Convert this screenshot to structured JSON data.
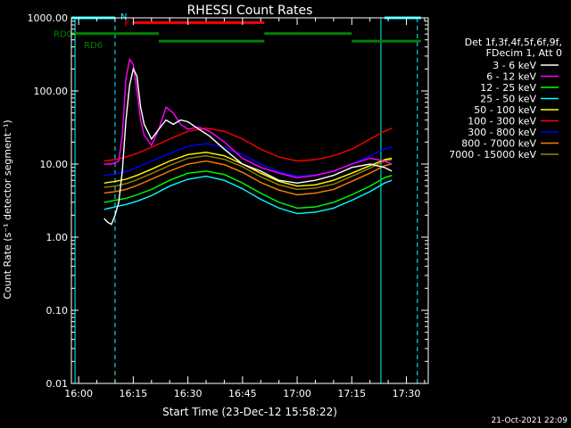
{
  "date_stamp": "21-Oct-2021 22:09",
  "chart_data": {
    "type": "line",
    "title": "RHESSI Count Rates",
    "xlabel": "Start Time (23-Dec-12 15:58:22)",
    "ylabel": "Count Rate (s⁻¹ detector segment⁻¹)",
    "yscale": "log",
    "xlim": [
      "15:58",
      "17:36"
    ],
    "ylim": [
      0.01,
      1000
    ],
    "x_ticks": [
      "16:00",
      "16:15",
      "16:30",
      "16:45",
      "17:00",
      "17:15",
      "17:30"
    ],
    "y_ticks": [
      "0.01",
      "0.10",
      "1.00",
      "10.00",
      "100.00",
      "1000.00"
    ],
    "grid": false,
    "legend_position": "right",
    "legend_header": [
      "Det 1f,3f,4f,5f,6f,9f,",
      "FDecim 1, Att 0"
    ],
    "x_unit": "minutes",
    "series": [
      {
        "name": "3 - 6 keV",
        "color": "#ffffff",
        "x": [
          "16:07",
          "16:08",
          "16:09",
          "16:10",
          "16:11",
          "16:12",
          "16:13",
          "16:14",
          "16:15",
          "16:16",
          "16:17",
          "16:18",
          "16:20",
          "16:22",
          "16:24",
          "16:26",
          "16:28",
          "16:30",
          "16:33",
          "16:36",
          "16:40",
          "16:45",
          "16:50",
          "16:55",
          "17:00",
          "17:05",
          "17:10",
          "17:15",
          "17:20",
          "17:24",
          "17:26"
        ],
        "y": [
          1.8,
          1.6,
          1.5,
          2,
          3,
          8,
          40,
          120,
          200,
          160,
          60,
          35,
          22,
          30,
          40,
          35,
          40,
          38,
          30,
          24,
          16,
          10,
          8,
          6,
          5.5,
          6,
          7,
          9,
          10,
          9,
          8
        ]
      },
      {
        "name": "6 - 12 keV",
        "color": "#ff00ff",
        "x": [
          "16:07",
          "16:09",
          "16:10",
          "16:11",
          "16:12",
          "16:13",
          "16:14",
          "16:15",
          "16:16",
          "16:17",
          "16:18",
          "16:20",
          "16:22",
          "16:24",
          "16:26",
          "16:28",
          "16:30",
          "16:33",
          "16:36",
          "16:40",
          "16:45",
          "16:50",
          "16:55",
          "17:00",
          "17:05",
          "17:10",
          "17:15",
          "17:20",
          "17:24",
          "17:26"
        ],
        "y": [
          10,
          10,
          10.5,
          11,
          25,
          150,
          270,
          230,
          100,
          40,
          25,
          18,
          30,
          60,
          50,
          35,
          30,
          32,
          28,
          20,
          12,
          9,
          7.5,
          6.5,
          7,
          8,
          10,
          12,
          11,
          10
        ]
      },
      {
        "name": "12 - 25 keV",
        "color": "#00ff00",
        "x": [
          "16:07",
          "16:10",
          "16:13",
          "16:16",
          "16:20",
          "16:25",
          "16:30",
          "16:35",
          "16:40",
          "16:45",
          "16:50",
          "16:55",
          "17:00",
          "17:05",
          "17:10",
          "17:15",
          "17:20",
          "17:24",
          "17:26"
        ],
        "y": [
          3,
          3.2,
          3.4,
          3.8,
          4.5,
          6,
          7.5,
          8,
          7.2,
          5.5,
          4,
          3,
          2.5,
          2.6,
          3,
          3.8,
          5,
          6.5,
          7
        ]
      },
      {
        "name": "25 - 50 keV",
        "color": "#00ffff",
        "x": [
          "16:07",
          "16:10",
          "16:13",
          "16:16",
          "16:20",
          "16:25",
          "16:30",
          "16:35",
          "16:40",
          "16:45",
          "16:50",
          "16:55",
          "17:00",
          "17:05",
          "17:10",
          "17:15",
          "17:20",
          "17:24",
          "17:26"
        ],
        "y": [
          2.4,
          2.6,
          2.8,
          3.1,
          3.7,
          5,
          6.2,
          6.8,
          6,
          4.6,
          3.3,
          2.5,
          2.1,
          2.2,
          2.5,
          3.2,
          4.2,
          5.5,
          6
        ]
      },
      {
        "name": "50 - 100 keV",
        "color": "#ffff00",
        "x": [
          "16:07",
          "16:10",
          "16:13",
          "16:16",
          "16:20",
          "16:25",
          "16:30",
          "16:35",
          "16:40",
          "16:45",
          "16:50",
          "16:55",
          "17:00",
          "17:05",
          "17:10",
          "17:15",
          "17:20",
          "17:24",
          "17:26"
        ],
        "y": [
          5.5,
          5.8,
          6.2,
          7,
          8.5,
          11,
          13.5,
          14.5,
          13,
          10,
          7.5,
          5.8,
          5,
          5.2,
          6,
          7.5,
          9.5,
          11.5,
          12
        ]
      },
      {
        "name": "100 - 300 keV",
        "color": "#ff0000",
        "x": [
          "16:07",
          "16:10",
          "16:13",
          "16:16",
          "16:20",
          "16:25",
          "16:30",
          "16:35",
          "16:40",
          "16:45",
          "16:50",
          "16:55",
          "17:00",
          "17:05",
          "17:10",
          "17:15",
          "17:20",
          "17:24",
          "17:26"
        ],
        "y": [
          11,
          11.5,
          12.5,
          14,
          17,
          22,
          28,
          31,
          28,
          22,
          16,
          12.5,
          11,
          11.5,
          13,
          16,
          22,
          28,
          31
        ]
      },
      {
        "name": "300 - 800 keV",
        "color": "#0000ff",
        "x": [
          "16:07",
          "16:10",
          "16:13",
          "16:16",
          "16:20",
          "16:25",
          "16:30",
          "16:35",
          "16:40",
          "16:45",
          "16:50",
          "16:55",
          "17:00",
          "17:05",
          "17:10",
          "17:15",
          "17:20",
          "17:24",
          "17:26"
        ],
        "y": [
          7,
          7.3,
          7.9,
          9,
          11,
          14,
          17.5,
          19,
          17,
          13.5,
          10,
          7.8,
          6.8,
          7.1,
          8,
          10,
          13,
          16,
          17
        ]
      },
      {
        "name": "800 - 7000 keV",
        "color": "#ff8000",
        "x": [
          "16:07",
          "16:10",
          "16:13",
          "16:16",
          "16:20",
          "16:25",
          "16:30",
          "16:35",
          "16:40",
          "16:45",
          "16:50",
          "16:55",
          "17:00",
          "17:05",
          "17:10",
          "17:15",
          "17:20",
          "17:24",
          "17:26"
        ],
        "y": [
          4,
          4.2,
          4.5,
          5.1,
          6.2,
          8,
          10,
          11,
          9.8,
          7.7,
          5.6,
          4.4,
          3.8,
          4,
          4.5,
          5.8,
          7.5,
          9.5,
          10
        ]
      },
      {
        "name": "7000 - 15000 keV",
        "color": "#a08000",
        "x": [
          "16:07",
          "16:10",
          "16:13",
          "16:16",
          "16:20",
          "16:25",
          "16:30",
          "16:35",
          "16:40",
          "16:45",
          "16:50",
          "16:55",
          "17:00",
          "17:05",
          "17:10",
          "17:15",
          "17:20",
          "17:24",
          "17:26"
        ],
        "y": [
          4.8,
          5,
          5.4,
          6.1,
          7.4,
          9.6,
          12,
          13,
          11.6,
          9.2,
          6.7,
          5.2,
          4.5,
          4.7,
          5.3,
          6.8,
          8.8,
          11,
          11.5
        ]
      }
    ],
    "annotations": [
      {
        "label": "N",
        "color": "#00ffff"
      },
      {
        "label": "F",
        "color": "#ff0000"
      },
      {
        "label": "RD0",
        "color": "#008000"
      },
      {
        "label": "RD6",
        "color": "#008000"
      }
    ],
    "state_bars": [
      {
        "label": "N",
        "color": "#00ffff",
        "level": 1000,
        "segments": [
          [
            "15:58",
            "16:10"
          ],
          [
            "17:24",
            "17:34"
          ]
        ]
      },
      {
        "label": "F",
        "color": "#ff0000",
        "level": 860,
        "segments": [
          [
            "16:15",
            "16:51"
          ]
        ]
      },
      {
        "label": "RD0",
        "color": "#008000",
        "level": 610,
        "segments": [
          [
            "15:58",
            "16:22"
          ],
          [
            "16:51",
            "17:15"
          ]
        ]
      },
      {
        "label": "RD6",
        "color": "#008000",
        "level": 480,
        "segments": [
          [
            "16:22",
            "16:51"
          ],
          [
            "17:15",
            "17:34"
          ]
        ]
      }
    ],
    "vertical_markers": [
      {
        "x": "15:59",
        "color": "#00ffff",
        "style": "solid"
      },
      {
        "x": "16:10",
        "color": "#00ffff",
        "style": "dashed"
      },
      {
        "x": "17:23",
        "color": "#00ffff",
        "style": "solid"
      },
      {
        "x": "17:33",
        "color": "#00ffff",
        "style": "dashed"
      }
    ]
  }
}
